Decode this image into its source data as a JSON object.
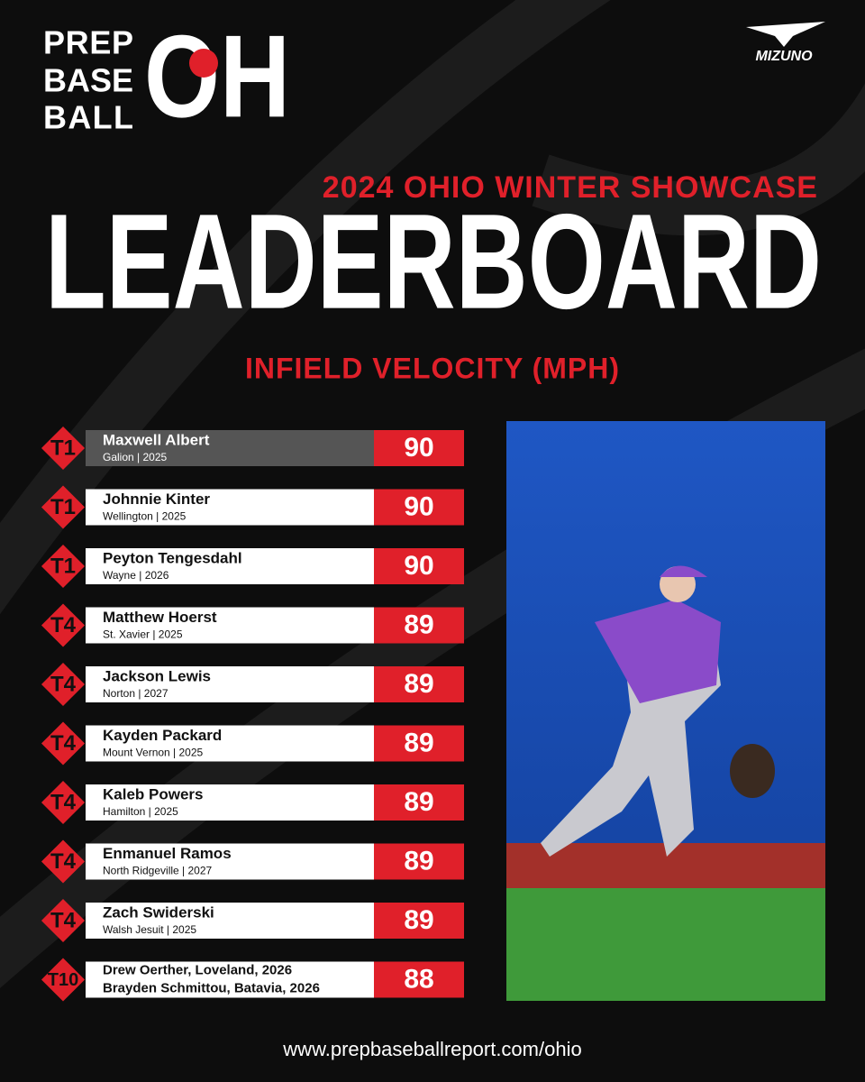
{
  "logo": {
    "lines": [
      "PREP",
      "BASE",
      "BALL"
    ],
    "mark": "OH"
  },
  "sponsor": "MIZUNO",
  "header": {
    "subtitle": "2024 OHIO WINTER SHOWCASE",
    "title": "LEADERBOARD",
    "metric": "INFIELD VELOCITY (MPH)"
  },
  "leaderboard": [
    {
      "rank": "T1",
      "name": "Maxwell Albert",
      "detail": "Galion | 2025",
      "value": 90
    },
    {
      "rank": "T1",
      "name": "Johnnie Kinter",
      "detail": "Wellington | 2025",
      "value": 90
    },
    {
      "rank": "T1",
      "name": "Peyton Tengesdahl",
      "detail": "Wayne | 2026",
      "value": 90
    },
    {
      "rank": "T4",
      "name": "Matthew Hoerst",
      "detail": "St. Xavier | 2025",
      "value": 89
    },
    {
      "rank": "T4",
      "name": "Jackson Lewis",
      "detail": "Norton | 2027",
      "value": 89
    },
    {
      "rank": "T4",
      "name": "Kayden Packard",
      "detail": "Mount Vernon | 2025",
      "value": 89
    },
    {
      "rank": "T4",
      "name": "Kaleb Powers",
      "detail": "Hamilton | 2025",
      "value": 89
    },
    {
      "rank": "T4",
      "name": "Enmanuel Ramos",
      "detail": "North Ridgeville | 2027",
      "value": 89
    },
    {
      "rank": "T4",
      "name": "Zach Swiderski",
      "detail": "Walsh Jesuit | 2025",
      "value": 89
    },
    {
      "rank": "T10",
      "name": "Drew Oerther, Loveland, 2026",
      "detail": "Brayden Schmittou, Batavia, 2026",
      "value": 88
    }
  ],
  "footer": "www.prepbaseballreport.com/ohio"
}
